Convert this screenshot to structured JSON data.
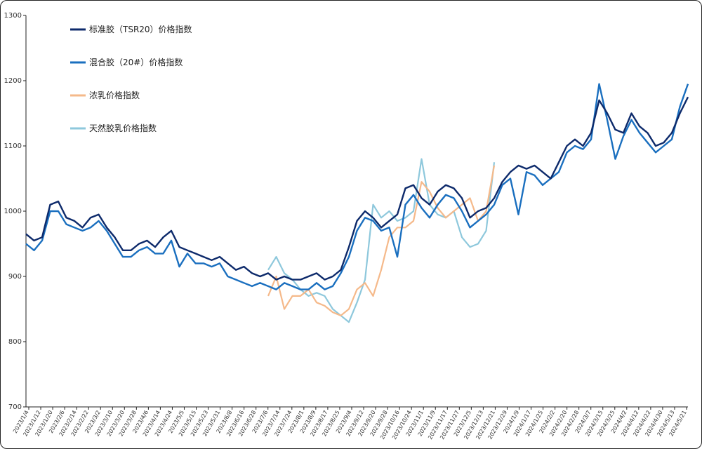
{
  "chart_data": {
    "type": "line",
    "title": "",
    "xlabel": "",
    "ylabel": "",
    "ylim": [
      700,
      1300
    ],
    "yticks": [
      700,
      800,
      900,
      1000,
      1100,
      1200,
      1300
    ],
    "x_tick_labels": [
      "2023/1/4",
      "2023/1/12",
      "2023/1/20",
      "2023/2/6",
      "2023/2/14",
      "2023/2/22",
      "2023/3/2",
      "2023/3/10",
      "2023/3/20",
      "2023/3/28",
      "2023/4/6",
      "2023/4/14",
      "2023/4/24",
      "2023/5/5",
      "2023/5/15",
      "2023/5/23",
      "2023/5/31",
      "2023/6/8",
      "2023/6/16",
      "2023/6/28",
      "2023/7/6",
      "2023/7/14",
      "2023/7/24",
      "2023/8/1",
      "2023/8/9",
      "2023/8/17",
      "2023/8/25",
      "2023/9/4",
      "2023/9/12",
      "2023/9/20",
      "2023/9/28",
      "2023/10/16",
      "2023/10/24",
      "2023/11/1",
      "2023/11/9",
      "2023/11/17",
      "2023/11/27",
      "2023/12/5",
      "2023/12/13",
      "2023/12/21",
      "2023/12/29",
      "2024/1/9",
      "2024/1/17",
      "2024/1/25",
      "2024/2/2",
      "2024/2/20",
      "2024/2/28",
      "2024/3/7",
      "2024/3/15",
      "2024/3/25",
      "2024/4/2",
      "2024/4/12",
      "2024/4/22",
      "2024/4/30",
      "2024/5/13",
      "2024/5/21"
    ],
    "grid": false,
    "legend_position": "top-left",
    "series": [
      {
        "name": "标准胶（TSR20）价格指数",
        "color": "#0d2a6b",
        "points": [
          [
            0,
            965
          ],
          [
            1,
            955
          ],
          [
            2,
            960
          ],
          [
            3,
            1010
          ],
          [
            4,
            1015
          ],
          [
            5,
            990
          ],
          [
            6,
            985
          ],
          [
            7,
            975
          ],
          [
            8,
            990
          ],
          [
            9,
            995
          ],
          [
            10,
            975
          ],
          [
            11,
            960
          ],
          [
            12,
            940
          ],
          [
            13,
            940
          ],
          [
            14,
            950
          ],
          [
            15,
            955
          ],
          [
            16,
            945
          ],
          [
            17,
            960
          ],
          [
            18,
            970
          ],
          [
            19,
            945
          ],
          [
            20,
            940
          ],
          [
            21,
            935
          ],
          [
            22,
            930
          ],
          [
            23,
            925
          ],
          [
            24,
            930
          ],
          [
            25,
            920
          ],
          [
            26,
            910
          ],
          [
            27,
            915
          ],
          [
            28,
            905
          ],
          [
            29,
            900
          ],
          [
            30,
            905
          ],
          [
            31,
            895
          ],
          [
            32,
            900
          ],
          [
            33,
            895
          ],
          [
            34,
            895
          ],
          [
            35,
            900
          ],
          [
            36,
            905
          ],
          [
            37,
            895
          ],
          [
            38,
            900
          ],
          [
            39,
            910
          ],
          [
            40,
            945
          ],
          [
            41,
            985
          ],
          [
            42,
            1000
          ],
          [
            43,
            990
          ],
          [
            44,
            975
          ],
          [
            45,
            985
          ],
          [
            46,
            995
          ],
          [
            47,
            1035
          ],
          [
            48,
            1040
          ],
          [
            49,
            1020
          ],
          [
            50,
            1010
          ],
          [
            51,
            1030
          ],
          [
            52,
            1040
          ],
          [
            53,
            1035
          ],
          [
            54,
            1020
          ],
          [
            55,
            990
          ],
          [
            56,
            1000
          ],
          [
            57,
            1005
          ],
          [
            58,
            1020
          ],
          [
            59,
            1045
          ],
          [
            60,
            1060
          ],
          [
            61,
            1070
          ],
          [
            62,
            1065
          ],
          [
            63,
            1070
          ],
          [
            64,
            1060
          ],
          [
            65,
            1050
          ],
          [
            66,
            1075
          ],
          [
            67,
            1100
          ],
          [
            68,
            1110
          ],
          [
            69,
            1100
          ],
          [
            70,
            1120
          ],
          [
            71,
            1170
          ],
          [
            72,
            1150
          ],
          [
            73,
            1125
          ],
          [
            74,
            1120
          ],
          [
            75,
            1150
          ],
          [
            76,
            1130
          ],
          [
            77,
            1120
          ],
          [
            78,
            1100
          ],
          [
            79,
            1105
          ],
          [
            80,
            1120
          ],
          [
            81,
            1150
          ],
          [
            82,
            1175
          ]
        ]
      },
      {
        "name": "混合胶（20#）价格指数",
        "color": "#1a6fbf",
        "points": [
          [
            0,
            950
          ],
          [
            1,
            940
          ],
          [
            2,
            955
          ],
          [
            3,
            1000
          ],
          [
            4,
            1000
          ],
          [
            5,
            980
          ],
          [
            6,
            975
          ],
          [
            7,
            970
          ],
          [
            8,
            975
          ],
          [
            9,
            985
          ],
          [
            10,
            970
          ],
          [
            11,
            950
          ],
          [
            12,
            930
          ],
          [
            13,
            930
          ],
          [
            14,
            940
          ],
          [
            15,
            945
          ],
          [
            16,
            935
          ],
          [
            17,
            935
          ],
          [
            18,
            955
          ],
          [
            19,
            915
          ],
          [
            20,
            935
          ],
          [
            21,
            920
          ],
          [
            22,
            920
          ],
          [
            23,
            915
          ],
          [
            24,
            920
          ],
          [
            25,
            900
          ],
          [
            26,
            895
          ],
          [
            27,
            890
          ],
          [
            28,
            885
          ],
          [
            29,
            890
          ],
          [
            30,
            885
          ],
          [
            31,
            880
          ],
          [
            32,
            890
          ],
          [
            33,
            885
          ],
          [
            34,
            880
          ],
          [
            35,
            880
          ],
          [
            36,
            890
          ],
          [
            37,
            880
          ],
          [
            38,
            885
          ],
          [
            39,
            905
          ],
          [
            40,
            930
          ],
          [
            41,
            970
          ],
          [
            42,
            990
          ],
          [
            43,
            985
          ],
          [
            44,
            970
          ],
          [
            45,
            975
          ],
          [
            46,
            930
          ],
          [
            47,
            1010
          ],
          [
            48,
            1025
          ],
          [
            49,
            1005
          ],
          [
            50,
            990
          ],
          [
            51,
            1010
          ],
          [
            52,
            1025
          ],
          [
            53,
            1020
          ],
          [
            54,
            1000
          ],
          [
            55,
            975
          ],
          [
            56,
            985
          ],
          [
            57,
            995
          ],
          [
            58,
            1010
          ],
          [
            59,
            1040
          ],
          [
            60,
            1050
          ],
          [
            61,
            995
          ],
          [
            62,
            1060
          ],
          [
            63,
            1055
          ],
          [
            64,
            1040
          ],
          [
            65,
            1050
          ],
          [
            66,
            1060
          ],
          [
            67,
            1090
          ],
          [
            68,
            1100
          ],
          [
            69,
            1095
          ],
          [
            70,
            1110
          ],
          [
            71,
            1195
          ],
          [
            72,
            1140
          ],
          [
            73,
            1080
          ],
          [
            74,
            1115
          ],
          [
            75,
            1140
          ],
          [
            76,
            1120
          ],
          [
            77,
            1105
          ],
          [
            78,
            1090
          ],
          [
            79,
            1100
          ],
          [
            80,
            1110
          ],
          [
            81,
            1160
          ],
          [
            82,
            1195
          ]
        ]
      },
      {
        "name": "浓乳价格指数",
        "color": "#f5b98a",
        "points": [
          [
            30,
            870
          ],
          [
            31,
            900
          ],
          [
            32,
            850
          ],
          [
            33,
            870
          ],
          [
            34,
            870
          ],
          [
            35,
            880
          ],
          [
            36,
            860
          ],
          [
            37,
            855
          ],
          [
            38,
            845
          ],
          [
            39,
            840
          ],
          [
            40,
            850
          ],
          [
            41,
            880
          ],
          [
            42,
            890
          ],
          [
            43,
            870
          ],
          [
            44,
            910
          ],
          [
            45,
            960
          ],
          [
            46,
            975
          ],
          [
            47,
            975
          ],
          [
            48,
            985
          ],
          [
            49,
            1045
          ],
          [
            50,
            1030
          ],
          [
            51,
            1005
          ],
          [
            52,
            990
          ],
          [
            53,
            1000
          ],
          [
            54,
            1010
          ],
          [
            55,
            1020
          ],
          [
            56,
            985
          ],
          [
            57,
            1000
          ],
          [
            58,
            1070
          ]
        ]
      },
      {
        "name": "天然胶乳价格指数",
        "color": "#8ec8dc",
        "points": [
          [
            30,
            910
          ],
          [
            31,
            930
          ],
          [
            32,
            905
          ],
          [
            33,
            895
          ],
          [
            34,
            880
          ],
          [
            35,
            870
          ],
          [
            36,
            875
          ],
          [
            37,
            870
          ],
          [
            38,
            850
          ],
          [
            39,
            840
          ],
          [
            40,
            830
          ],
          [
            41,
            860
          ],
          [
            42,
            895
          ],
          [
            43,
            1010
          ],
          [
            44,
            990
          ],
          [
            45,
            1000
          ],
          [
            46,
            985
          ],
          [
            47,
            990
          ],
          [
            48,
            1000
          ],
          [
            49,
            1080
          ],
          [
            50,
            1010
          ],
          [
            51,
            995
          ],
          [
            52,
            990
          ],
          [
            53,
            1000
          ],
          [
            54,
            960
          ],
          [
            55,
            945
          ],
          [
            56,
            950
          ],
          [
            57,
            970
          ],
          [
            58,
            1075
          ]
        ]
      }
    ]
  }
}
